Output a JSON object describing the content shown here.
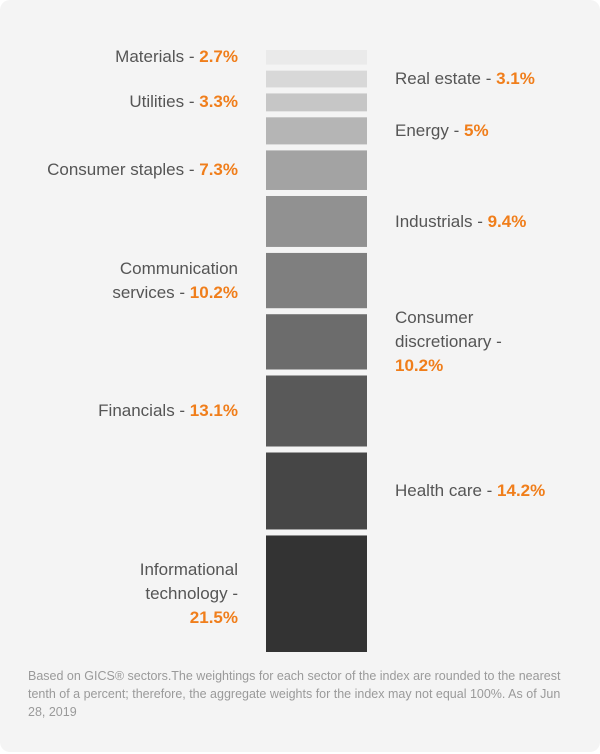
{
  "chart_data": {
    "type": "bar",
    "orientation": "stacked-vertical",
    "categories": [
      "Materials",
      "Real estate",
      "Utilities",
      "Energy",
      "Consumer staples",
      "Industrials",
      "Communication services",
      "Consumer discretionary",
      "Financials",
      "Health care",
      "Informational technology"
    ],
    "values": [
      2.7,
      3.1,
      3.3,
      5,
      7.3,
      9.4,
      10.2,
      10.2,
      13.1,
      14.2,
      21.5
    ],
    "label_sides": [
      "left",
      "right",
      "left",
      "right",
      "left",
      "right",
      "left",
      "right",
      "left",
      "right",
      "left"
    ],
    "label_lines": [
      [
        "Materials - "
      ],
      [
        "Real estate - "
      ],
      [
        "Utilities - "
      ],
      [
        "Energy - "
      ],
      [
        "Consumer staples - "
      ],
      [
        "Industrials - "
      ],
      [
        "Communication",
        "services - "
      ],
      [
        "Consumer",
        "discretionary -",
        ""
      ],
      [
        "Financials - "
      ],
      [
        "Health care - "
      ],
      [
        "Informational",
        "technology -",
        ""
      ]
    ],
    "value_labels": [
      "2.7%",
      "3.1%",
      "3.3%",
      "5%",
      "7.3%",
      "9.4%",
      "10.2%",
      "10.2%",
      "13.1%",
      "14.2%",
      "21.5%"
    ],
    "colors": [
      "#eaeaea",
      "#d8d8d8",
      "#c6c6c6",
      "#b5b5b5",
      "#a3a3a3",
      "#919191",
      "#7f7f7f",
      "#6c6c6c",
      "#595959",
      "#464646",
      "#333333"
    ],
    "accent_color": "#f07e1b",
    "title": "",
    "xlabel": "",
    "ylabel": ""
  },
  "footnote": "Based on GICS® sectors.The weightings for each sector of the index are rounded to the nearest tenth of a percent; therefore, the aggregate weights for the index may not equal 100%. As of Jun 28, 2019"
}
